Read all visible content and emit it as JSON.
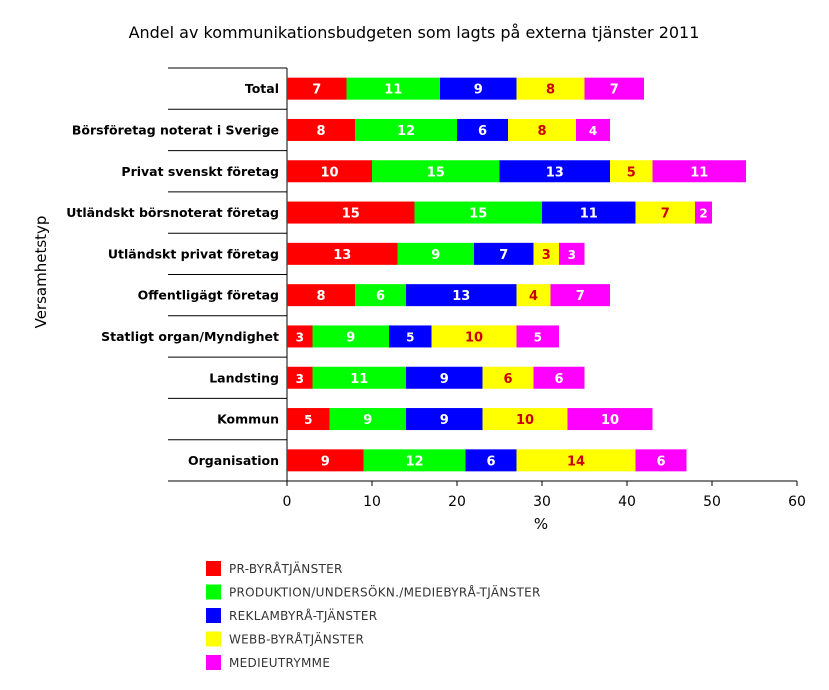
{
  "chart_data": {
    "type": "bar",
    "orientation": "horizontal",
    "stacked": true,
    "title": "Andel av kommunikationsbudgeten som lagts på externa tjänster 2011",
    "xlabel": "%",
    "ylabel": "Versamhetstyp",
    "xlim": [
      0,
      60
    ],
    "xticks": [
      0,
      10,
      20,
      30,
      40,
      50,
      60
    ],
    "grid": false,
    "legend_position": "bottom",
    "categories": [
      "Total",
      "Börsföretag noterat i Sverige",
      "Privat svenskt företag",
      "Utländskt börsnoterat företag",
      "Utländskt privat företag",
      "Offentligägt företag",
      "Statligt organ/Myndighet",
      "Landsting",
      "Kommun",
      "Organisation"
    ],
    "series": [
      {
        "name": "PR-BYRÅTJÄNSTER",
        "color": "#ff0000",
        "label_color": "#ffffff",
        "values": [
          7,
          8,
          10,
          15,
          13,
          8,
          3,
          3,
          5,
          9
        ]
      },
      {
        "name": "PRODUKTION/UNDERSÖKN./MEDIEBYRÅ-TJÄNSTER",
        "color": "#00ff00",
        "label_color": "#ffffff",
        "values": [
          11,
          12,
          15,
          15,
          9,
          6,
          9,
          11,
          9,
          12
        ]
      },
      {
        "name": "REKLAMBYRÅ-TJÄNSTER",
        "color": "#0000ff",
        "label_color": "#ffffff",
        "values": [
          9,
          6,
          13,
          11,
          7,
          13,
          5,
          9,
          9,
          6
        ]
      },
      {
        "name": "WEBB-BYRÅTJÄNSTER",
        "color": "#ffff00",
        "label_color": "#cc0000",
        "values": [
          8,
          8,
          5,
          7,
          3,
          4,
          10,
          6,
          10,
          14
        ]
      },
      {
        "name": "MEDIEUTRYMME",
        "color": "#ff00ff",
        "label_color": "#ffffff",
        "values": [
          7,
          4,
          11,
          2,
          3,
          7,
          5,
          6,
          10,
          6
        ]
      }
    ]
  }
}
